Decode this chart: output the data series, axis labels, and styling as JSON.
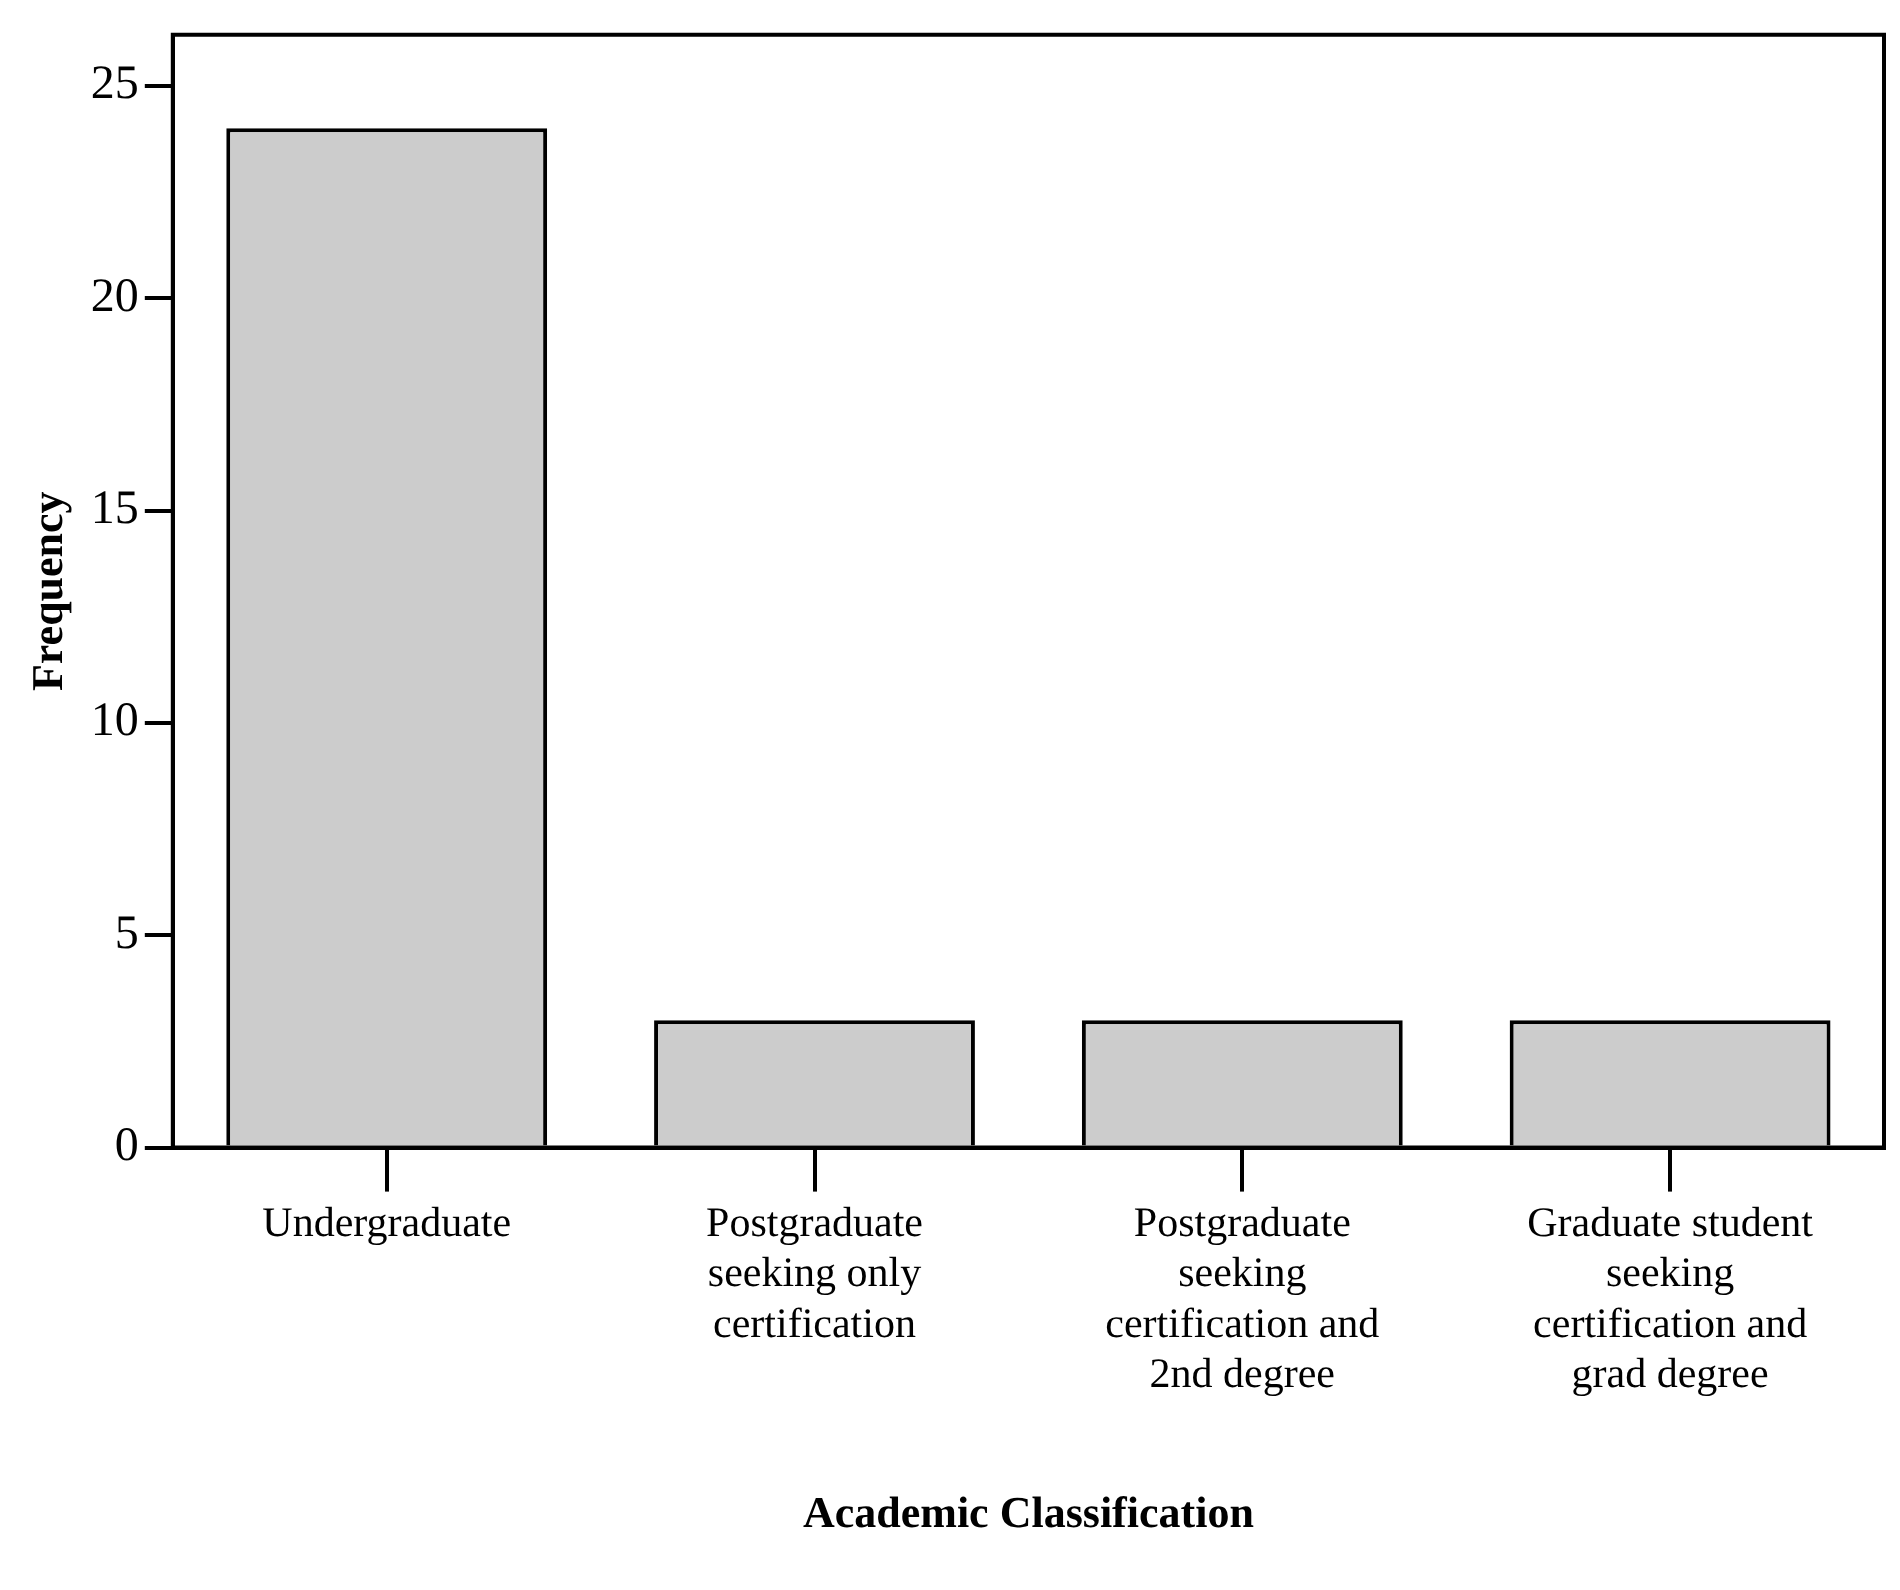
{
  "chart_data": {
    "type": "bar",
    "xlabel": "Academic Classification",
    "ylabel": "Frequency",
    "categories": [
      "Undergraduate",
      "Postgraduate seeking only certification",
      "Postgraduate seeking certification and 2nd degree",
      "Graduate student seeking certification and grad degree"
    ],
    "values": [
      24,
      3,
      3,
      3
    ],
    "color": "#cccccc",
    "ylim": [
      0,
      26.2
    ],
    "yticks": [
      0,
      5,
      10,
      15,
      20,
      25
    ],
    "grid": false,
    "legend": false
  }
}
